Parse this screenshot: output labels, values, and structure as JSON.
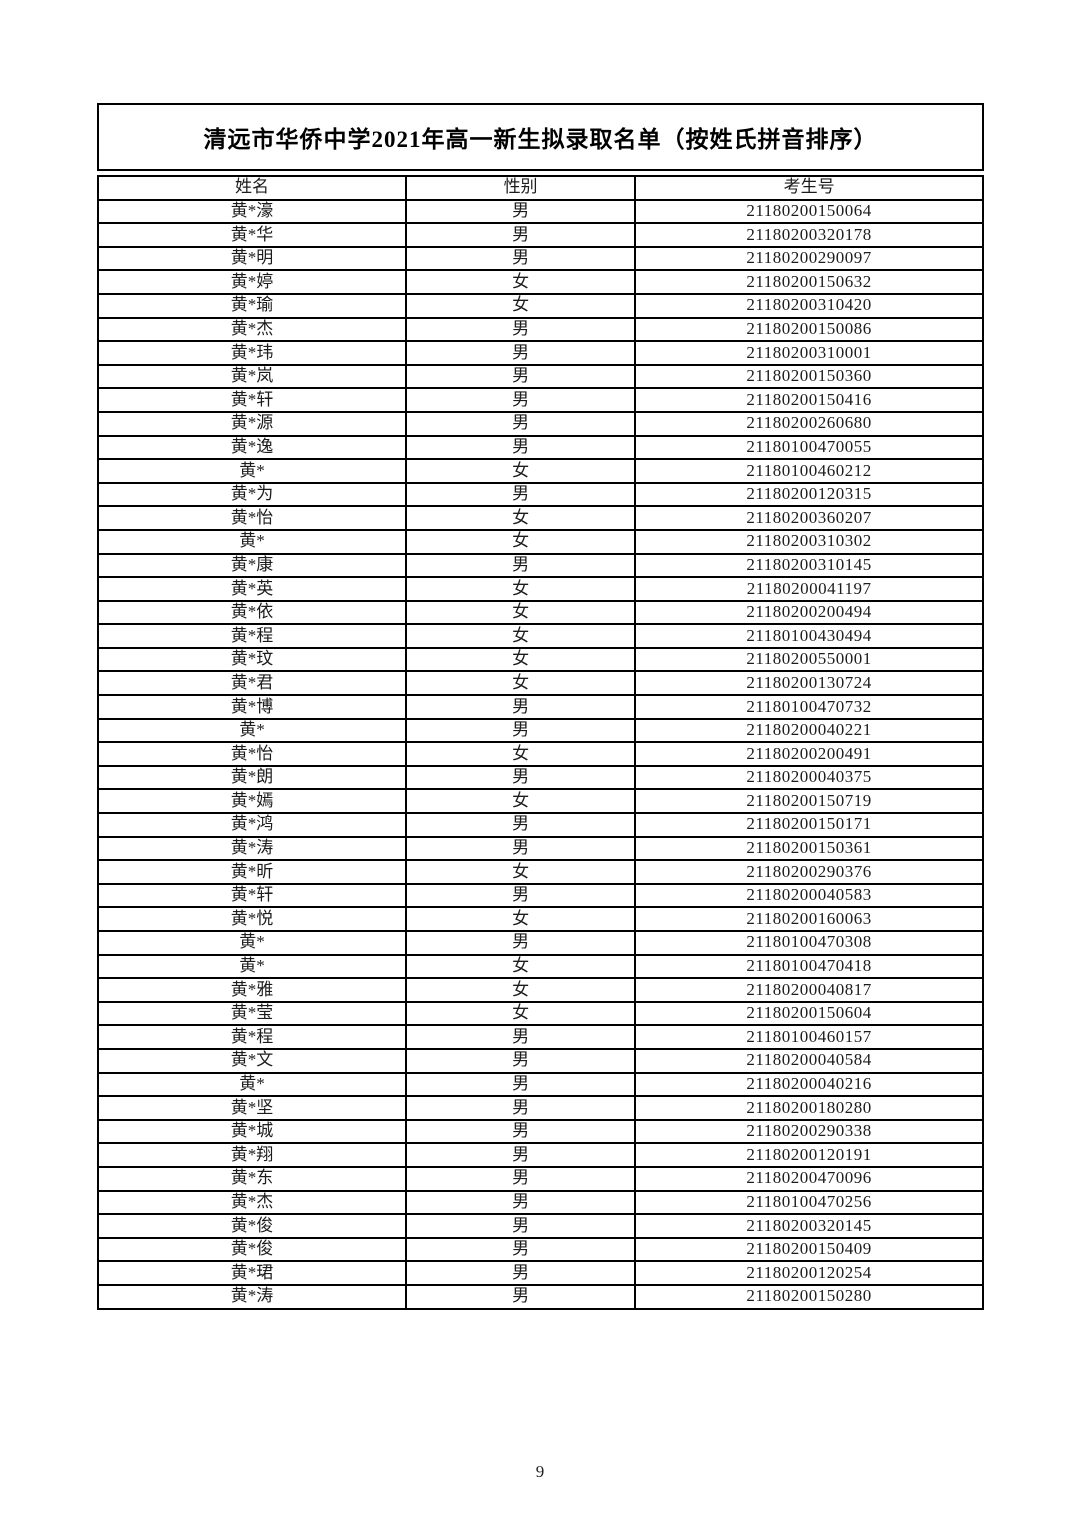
{
  "title": "清远市华侨中学2021年高一新生拟录取名单（按姓氏拼音排序）",
  "page_number": "9",
  "table": {
    "headers": [
      "姓名",
      "性别",
      "考生号"
    ],
    "rows": [
      {
        "name": "黄*濠",
        "gender": "男",
        "exam_id": "21180200150064"
      },
      {
        "name": "黄*华",
        "gender": "男",
        "exam_id": "21180200320178"
      },
      {
        "name": "黄*明",
        "gender": "男",
        "exam_id": "21180200290097"
      },
      {
        "name": "黄*婷",
        "gender": "女",
        "exam_id": "21180200150632"
      },
      {
        "name": "黄*瑜",
        "gender": "女",
        "exam_id": "21180200310420"
      },
      {
        "name": "黄*杰",
        "gender": "男",
        "exam_id": "21180200150086"
      },
      {
        "name": "黄*玮",
        "gender": "男",
        "exam_id": "21180200310001"
      },
      {
        "name": "黄*岚",
        "gender": "男",
        "exam_id": "21180200150360"
      },
      {
        "name": "黄*轩",
        "gender": "男",
        "exam_id": "21180200150416"
      },
      {
        "name": "黄*源",
        "gender": "男",
        "exam_id": "21180200260680"
      },
      {
        "name": "黄*逸",
        "gender": "男",
        "exam_id": "21180100470055"
      },
      {
        "name": "黄*",
        "gender": "女",
        "exam_id": "21180100460212"
      },
      {
        "name": "黄*为",
        "gender": "男",
        "exam_id": "21180200120315"
      },
      {
        "name": "黄*怡",
        "gender": "女",
        "exam_id": "21180200360207"
      },
      {
        "name": "黄*",
        "gender": "女",
        "exam_id": "21180200310302"
      },
      {
        "name": "黄*康",
        "gender": "男",
        "exam_id": "21180200310145"
      },
      {
        "name": "黄*英",
        "gender": "女",
        "exam_id": "21180200041197"
      },
      {
        "name": "黄*依",
        "gender": "女",
        "exam_id": "21180200200494"
      },
      {
        "name": "黄*程",
        "gender": "女",
        "exam_id": "21180100430494"
      },
      {
        "name": "黄*玟",
        "gender": "女",
        "exam_id": "21180200550001"
      },
      {
        "name": "黄*君",
        "gender": "女",
        "exam_id": "21180200130724"
      },
      {
        "name": "黄*博",
        "gender": "男",
        "exam_id": "21180100470732"
      },
      {
        "name": "黄*",
        "gender": "男",
        "exam_id": "21180200040221"
      },
      {
        "name": "黄*怡",
        "gender": "女",
        "exam_id": "21180200200491"
      },
      {
        "name": "黄*朗",
        "gender": "男",
        "exam_id": "21180200040375"
      },
      {
        "name": "黄*嫣",
        "gender": "女",
        "exam_id": "21180200150719"
      },
      {
        "name": "黄*鸿",
        "gender": "男",
        "exam_id": "21180200150171"
      },
      {
        "name": "黄*涛",
        "gender": "男",
        "exam_id": "21180200150361"
      },
      {
        "name": "黄*昕",
        "gender": "女",
        "exam_id": "21180200290376"
      },
      {
        "name": "黄*轩",
        "gender": "男",
        "exam_id": "21180200040583"
      },
      {
        "name": "黄*悦",
        "gender": "女",
        "exam_id": "21180200160063"
      },
      {
        "name": "黄*",
        "gender": "男",
        "exam_id": "21180100470308"
      },
      {
        "name": "黄*",
        "gender": "女",
        "exam_id": "21180100470418"
      },
      {
        "name": "黄*雅",
        "gender": "女",
        "exam_id": "21180200040817"
      },
      {
        "name": "黄*莹",
        "gender": "女",
        "exam_id": "21180200150604"
      },
      {
        "name": "黄*程",
        "gender": "男",
        "exam_id": "21180100460157"
      },
      {
        "name": "黄*文",
        "gender": "男",
        "exam_id": "21180200040584"
      },
      {
        "name": "黄*",
        "gender": "男",
        "exam_id": "21180200040216"
      },
      {
        "name": "黄*坚",
        "gender": "男",
        "exam_id": "21180200180280"
      },
      {
        "name": "黄*城",
        "gender": "男",
        "exam_id": "21180200290338"
      },
      {
        "name": "黄*翔",
        "gender": "男",
        "exam_id": "21180200120191"
      },
      {
        "name": "黄*东",
        "gender": "男",
        "exam_id": "21180200470096"
      },
      {
        "name": "黄*杰",
        "gender": "男",
        "exam_id": "21180100470256"
      },
      {
        "name": "黄*俊",
        "gender": "男",
        "exam_id": "21180200320145"
      },
      {
        "name": "黄*俊",
        "gender": "男",
        "exam_id": "21180200150409"
      },
      {
        "name": "黄*珺",
        "gender": "男",
        "exam_id": "21180200120254"
      },
      {
        "name": "黄*涛",
        "gender": "男",
        "exam_id": "21180200150280"
      }
    ]
  }
}
